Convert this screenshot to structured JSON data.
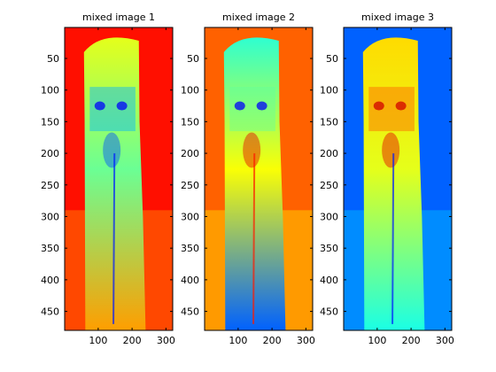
{
  "chart_data": [
    {
      "type": "heatmap",
      "title": "mixed image 1",
      "colormap": "jet",
      "xlim": [
        1,
        320
      ],
      "ylim": [
        1,
        480
      ],
      "xticks": [
        100,
        200,
        300
      ],
      "yticks": [
        50,
        100,
        150,
        200,
        250,
        300,
        350,
        400,
        450
      ],
      "background_level": 0.86,
      "subject_level": 0.48,
      "top_level": 0.6,
      "bottom_level": 0.72
    },
    {
      "type": "heatmap",
      "title": "mixed image 2",
      "colormap": "jet",
      "xlim": [
        1,
        320
      ],
      "ylim": [
        1,
        480
      ],
      "xticks": [
        100,
        200,
        300
      ],
      "yticks": [
        50,
        100,
        150,
        200,
        250,
        300,
        350,
        400,
        450
      ],
      "background_level": 0.78,
      "subject_level": 0.62,
      "top_level": 0.42,
      "bottom_level": 0.22
    },
    {
      "type": "heatmap",
      "title": "mixed image 3",
      "colormap": "jet",
      "xlim": [
        1,
        320
      ],
      "ylim": [
        1,
        480
      ],
      "xticks": [
        100,
        200,
        300
      ],
      "yticks": [
        50,
        100,
        150,
        200,
        250,
        300,
        350,
        400,
        450
      ],
      "background_level": 0.22,
      "subject_level": 0.6,
      "top_level": 0.66,
      "bottom_level": 0.4
    }
  ]
}
